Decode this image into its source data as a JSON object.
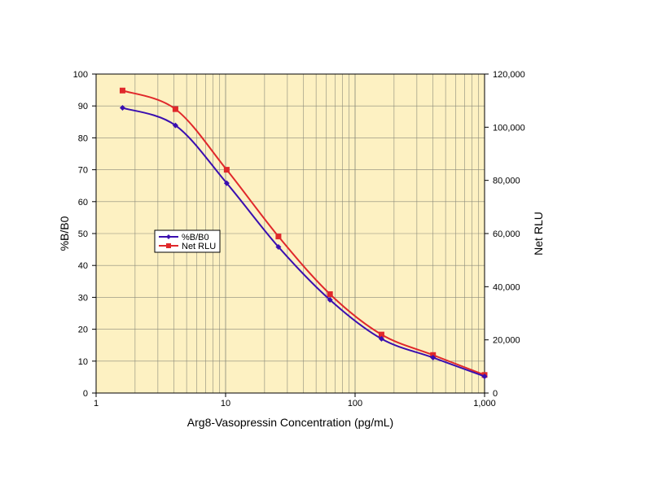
{
  "chart_data": {
    "type": "line",
    "title": "",
    "xlabel": "Arg8-Vasopressin Concentration (pg/mL)",
    "ylabel": "%B/B0",
    "y2label": "Net RLU",
    "xscale": "log",
    "xlim": [
      1,
      1000
    ],
    "ylim": [
      0,
      100
    ],
    "y2lim": [
      0,
      120000
    ],
    "x_tick_labels": [
      "1",
      "10",
      "100",
      "1,000"
    ],
    "y_tick_labels": [
      "0",
      "10",
      "20",
      "30",
      "40",
      "50",
      "60",
      "70",
      "80",
      "90",
      "100"
    ],
    "y2_tick_labels": [
      "0",
      "20,000",
      "40,000",
      "60,000",
      "80,000",
      "100,000",
      "120,000"
    ],
    "grid": true,
    "background_color": "#fdf1c2",
    "legend_position": "left-center",
    "series": [
      {
        "name": "%B/B0",
        "axis": "left",
        "color": "#3a0fb0",
        "marker": "diamond",
        "x": [
          1.6,
          4.1,
          10.2,
          25.6,
          64,
          160,
          400,
          1000
        ],
        "y": [
          89.4,
          83.9,
          65.8,
          45.8,
          29.2,
          17.0,
          11.1,
          5.2
        ]
      },
      {
        "name": "Net RLU",
        "axis": "right",
        "color": "#e0282b",
        "marker": "square",
        "x": [
          1.6,
          4.1,
          10.2,
          25.6,
          64,
          160,
          400,
          1000
        ],
        "y": [
          113800,
          106800,
          84000,
          58900,
          37200,
          22000,
          14300,
          6800
        ]
      }
    ]
  }
}
